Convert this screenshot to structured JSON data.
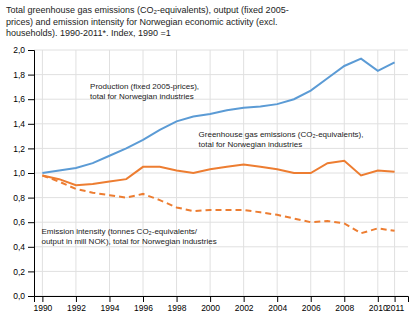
{
  "chart_data": {
    "type": "line",
    "title": "Total greenhouse gas emissions (CO₂-equivalents), output (fixed 2005-\nprices) and emission intensity for Norwegian economic activity (excl.\nhouseholds). 1990-2011*. Index, 1990 =1",
    "x": [
      1990,
      1991,
      1992,
      1993,
      1994,
      1995,
      1996,
      1997,
      1998,
      1999,
      2000,
      2001,
      2002,
      2003,
      2004,
      2005,
      2006,
      2007,
      2008,
      2009,
      2010,
      2011
    ],
    "series": [
      {
        "color": "#5b9bd5",
        "line_style": "solid",
        "values": [
          1.0,
          1.02,
          1.04,
          1.08,
          1.14,
          1.2,
          1.27,
          1.35,
          1.42,
          1.46,
          1.48,
          1.51,
          1.53,
          1.54,
          1.56,
          1.6,
          1.67,
          1.77,
          1.87,
          1.93,
          1.83,
          1.9
        ]
      },
      {
        "color": "#ed7d31",
        "line_style": "solid",
        "values": [
          0.98,
          0.95,
          0.9,
          0.91,
          0.93,
          0.95,
          1.05,
          1.05,
          1.02,
          1.0,
          1.03,
          1.05,
          1.07,
          1.05,
          1.03,
          1.0,
          1.0,
          1.08,
          1.1,
          0.98,
          1.02,
          1.01
        ]
      },
      {
        "color": "#ed7d31",
        "line_style": "dashed",
        "values": [
          0.98,
          0.93,
          0.87,
          0.84,
          0.82,
          0.8,
          0.83,
          0.78,
          0.72,
          0.69,
          0.7,
          0.7,
          0.7,
          0.68,
          0.66,
          0.63,
          0.6,
          0.61,
          0.59,
          0.51,
          0.55,
          0.53
        ]
      }
    ],
    "annotations": [
      "Production (fixed 2005-prices),\ntotal for Norwegian industries",
      "Greenhouse gas emissions (CO₂-equivalents),\ntotal for Norwegian industries",
      "Emission intensity (tonnes CO₂-equivalents/\noutput in mill NOK), total for Norwegian industries"
    ],
    "xlim": [
      1989.5,
      2011.8
    ],
    "xticks": [
      1990,
      1992,
      1994,
      1996,
      1998,
      2000,
      2002,
      2004,
      2006,
      2008,
      2010,
      2011
    ],
    "ylim": [
      0.0,
      2.0
    ],
    "yticks": [
      {
        "value": 0.0,
        "label": "0,0"
      },
      {
        "value": 0.2,
        "label": "0,2"
      },
      {
        "value": 0.4,
        "label": "0,4"
      },
      {
        "value": 0.6,
        "label": "0,6"
      },
      {
        "value": 0.8,
        "label": "0,8"
      },
      {
        "value": 1.0,
        "label": "1,0"
      },
      {
        "value": 1.2,
        "label": "1,2"
      },
      {
        "value": 1.4,
        "label": "1,4"
      },
      {
        "value": 1.6,
        "label": "1,6"
      },
      {
        "value": 1.8,
        "label": "1,8"
      },
      {
        "value": 2.0,
        "label": "2,0"
      }
    ],
    "grid": true
  }
}
